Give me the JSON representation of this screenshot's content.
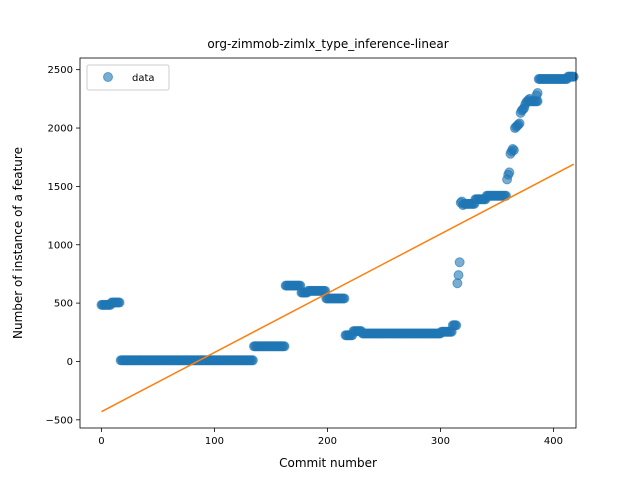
{
  "chart_data": {
    "type": "scatter",
    "title": "org-zimmob-zimlx_type_inference-linear",
    "xlabel": "Commit number",
    "ylabel": "Number of instance of a feature",
    "xlim": [
      -19,
      420
    ],
    "ylim": [
      -570,
      2600
    ],
    "xticks": [
      0,
      100,
      200,
      300,
      400
    ],
    "yticks": [
      -500,
      0,
      500,
      1000,
      1500,
      2000,
      2500
    ],
    "grid": false,
    "legend": {
      "position": "top-left",
      "entries": [
        "data"
      ]
    },
    "colors": {
      "data": "#1f77b4",
      "fit": "#ff7f0e"
    },
    "series": [
      {
        "name": "data",
        "kind": "scatter",
        "segments": [
          {
            "x_start": 0,
            "x_end": 8,
            "y": 485
          },
          {
            "x_start": 9,
            "x_end": 16,
            "y": 505
          },
          {
            "x_start": 17,
            "x_end": 134,
            "y": 10
          },
          {
            "x_start": 135,
            "x_end": 162,
            "y": 130
          },
          {
            "x_start": 163,
            "x_end": 176,
            "y": 650
          },
          {
            "x_start": 177,
            "x_end": 182,
            "y": 590
          },
          {
            "x_start": 183,
            "x_end": 198,
            "y": 605
          },
          {
            "x_start": 199,
            "x_end": 215,
            "y": 540
          },
          {
            "x_start": 216,
            "x_end": 222,
            "y": 225
          },
          {
            "x_start": 223,
            "x_end": 230,
            "y": 260
          },
          {
            "x_start": 231,
            "x_end": 300,
            "y": 240
          },
          {
            "x_start": 301,
            "x_end": 310,
            "y": 255
          },
          {
            "x_start": 311,
            "x_end": 314,
            "y": 310
          },
          {
            "x_start": 321,
            "x_end": 330,
            "y": 1350
          },
          {
            "x_start": 331,
            "x_end": 340,
            "y": 1390
          },
          {
            "x_start": 341,
            "x_end": 358,
            "y": 1420
          },
          {
            "x_start": 380,
            "x_end": 386,
            "y": 2230
          },
          {
            "x_start": 387,
            "x_end": 412,
            "y": 2420
          },
          {
            "x_start": 413,
            "x_end": 418,
            "y": 2440
          }
        ],
        "points": [
          {
            "x": 315,
            "y": 670
          },
          {
            "x": 316,
            "y": 740
          },
          {
            "x": 317,
            "y": 850
          },
          {
            "x": 318,
            "y": 1360
          },
          {
            "x": 319,
            "y": 1370
          },
          {
            "x": 320,
            "y": 1340
          },
          {
            "x": 359,
            "y": 1560
          },
          {
            "x": 360,
            "y": 1600
          },
          {
            "x": 361,
            "y": 1620
          },
          {
            "x": 362,
            "y": 1780
          },
          {
            "x": 363,
            "y": 1800
          },
          {
            "x": 364,
            "y": 1820
          },
          {
            "x": 365,
            "y": 1810
          },
          {
            "x": 366,
            "y": 2000
          },
          {
            "x": 367,
            "y": 2010
          },
          {
            "x": 368,
            "y": 2020
          },
          {
            "x": 369,
            "y": 2030
          },
          {
            "x": 370,
            "y": 2040
          },
          {
            "x": 371,
            "y": 2130
          },
          {
            "x": 372,
            "y": 2150
          },
          {
            "x": 373,
            "y": 2160
          },
          {
            "x": 374,
            "y": 2170
          },
          {
            "x": 375,
            "y": 2200
          },
          {
            "x": 376,
            "y": 2220
          },
          {
            "x": 377,
            "y": 2230
          },
          {
            "x": 378,
            "y": 2240
          },
          {
            "x": 379,
            "y": 2250
          },
          {
            "x": 385,
            "y": 2280
          },
          {
            "x": 386,
            "y": 2300
          }
        ]
      },
      {
        "name": "fit",
        "kind": "line",
        "x": [
          0,
          418
        ],
        "y": [
          -430,
          1690
        ]
      }
    ]
  }
}
